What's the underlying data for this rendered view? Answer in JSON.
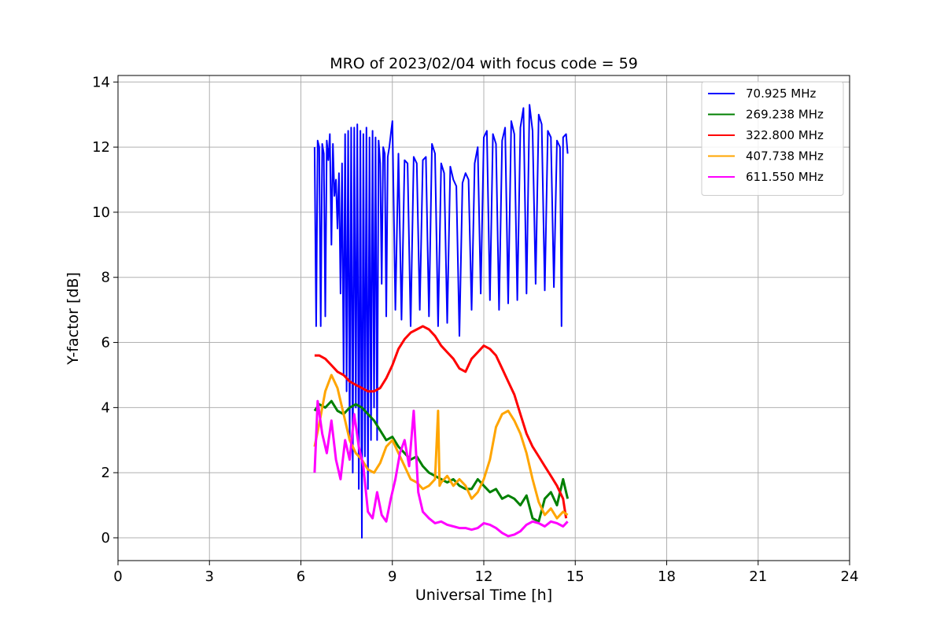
{
  "chart_data": {
    "type": "line",
    "title": "MRO of 2023/02/04 with focus code = 59",
    "xlabel": "Universal Time [h]",
    "ylabel": "Y-factor [dB]",
    "xlim": [
      0,
      24
    ],
    "ylim": [
      -0.7,
      14.2
    ],
    "xticks": [
      0,
      3,
      6,
      9,
      12,
      15,
      18,
      21,
      24
    ],
    "yticks": [
      0,
      2,
      4,
      6,
      8,
      10,
      12,
      14
    ],
    "grid": true,
    "legend_position": "top-right",
    "series": [
      {
        "name": " 70.925 MHz",
        "color": "#0000ff",
        "x": [
          6.45,
          6.5,
          6.55,
          6.6,
          6.65,
          6.7,
          6.75,
          6.8,
          6.85,
          6.9,
          6.95,
          7.0,
          7.05,
          7.1,
          7.15,
          7.2,
          7.25,
          7.3,
          7.35,
          7.4,
          7.45,
          7.5,
          7.55,
          7.6,
          7.65,
          7.7,
          7.75,
          7.8,
          7.85,
          7.9,
          7.95,
          8.0,
          8.05,
          8.1,
          8.15,
          8.2,
          8.25,
          8.3,
          8.35,
          8.4,
          8.45,
          8.5,
          8.55,
          8.6,
          8.65,
          8.7,
          8.75,
          8.8,
          8.85,
          8.9,
          8.95,
          9.0,
          9.1,
          9.2,
          9.3,
          9.4,
          9.5,
          9.6,
          9.7,
          9.8,
          9.9,
          10.0,
          10.1,
          10.2,
          10.3,
          10.4,
          10.5,
          10.6,
          10.7,
          10.8,
          10.9,
          11.0,
          11.1,
          11.2,
          11.3,
          11.4,
          11.5,
          11.6,
          11.7,
          11.8,
          11.9,
          12.0,
          12.1,
          12.2,
          12.3,
          12.4,
          12.5,
          12.6,
          12.7,
          12.8,
          12.9,
          13.0,
          13.1,
          13.2,
          13.3,
          13.4,
          13.5,
          13.6,
          13.7,
          13.8,
          13.9,
          14.0,
          14.1,
          14.2,
          14.3,
          14.4,
          14.5,
          14.55,
          14.6,
          14.7,
          14.75
        ],
        "y": [
          12.0,
          6.5,
          12.2,
          12.0,
          6.5,
          12.1,
          11.8,
          6.8,
          12.2,
          11.6,
          12.4,
          9.0,
          12.1,
          10.5,
          11.0,
          9.5,
          11.2,
          7.5,
          11.5,
          5.0,
          12.4,
          4.5,
          12.5,
          3.0,
          12.6,
          2.0,
          12.6,
          4.0,
          12.7,
          1.5,
          12.5,
          0.0,
          12.4,
          2.5,
          12.6,
          1.5,
          12.3,
          3.0,
          12.5,
          4.0,
          12.3,
          3.0,
          12.2,
          11.5,
          7.8,
          12.0,
          11.8,
          6.8,
          11.7,
          12.0,
          12.4,
          12.8,
          7.0,
          11.8,
          6.7,
          11.6,
          11.5,
          6.5,
          11.7,
          11.5,
          7.0,
          11.6,
          11.7,
          6.8,
          12.1,
          11.8,
          6.5,
          11.5,
          11.2,
          6.6,
          11.4,
          11.0,
          10.8,
          6.2,
          10.9,
          11.2,
          11.0,
          7.0,
          11.5,
          12.0,
          7.5,
          12.3,
          12.5,
          7.3,
          12.4,
          12.1,
          7.0,
          12.2,
          12.6,
          7.2,
          12.8,
          12.4,
          7.3,
          12.6,
          13.2,
          7.5,
          13.3,
          12.5,
          7.8,
          13.0,
          12.7,
          7.6,
          12.5,
          12.3,
          7.7,
          12.2,
          12.0,
          6.5,
          12.3,
          12.4,
          11.8
        ]
      },
      {
        "name": " 269.238 MHz",
        "color": "#008000",
        "x": [
          6.45,
          6.6,
          6.8,
          7.0,
          7.2,
          7.4,
          7.6,
          7.8,
          8.0,
          8.2,
          8.4,
          8.6,
          8.8,
          9.0,
          9.2,
          9.4,
          9.6,
          9.8,
          10.0,
          10.2,
          10.4,
          10.6,
          10.8,
          11.0,
          11.2,
          11.4,
          11.6,
          11.8,
          12.0,
          12.2,
          12.4,
          12.6,
          12.8,
          13.0,
          13.2,
          13.4,
          13.6,
          13.8,
          14.0,
          14.2,
          14.4,
          14.6,
          14.75
        ],
        "y": [
          3.9,
          4.1,
          4.0,
          4.2,
          3.9,
          3.8,
          4.0,
          4.1,
          4.0,
          3.8,
          3.6,
          3.3,
          3.0,
          3.1,
          2.8,
          2.6,
          2.4,
          2.5,
          2.2,
          2.0,
          1.9,
          1.8,
          1.7,
          1.8,
          1.6,
          1.5,
          1.5,
          1.8,
          1.6,
          1.4,
          1.5,
          1.2,
          1.3,
          1.2,
          1.0,
          1.3,
          0.6,
          0.5,
          1.2,
          1.4,
          1.0,
          1.8,
          1.2
        ]
      },
      {
        "name": " 322.800 MHz",
        "color": "#ff0000",
        "x": [
          6.45,
          6.6,
          6.8,
          7.0,
          7.2,
          7.4,
          7.6,
          7.8,
          8.0,
          8.2,
          8.4,
          8.6,
          8.8,
          9.0,
          9.2,
          9.4,
          9.6,
          9.8,
          10.0,
          10.2,
          10.4,
          10.6,
          10.8,
          11.0,
          11.2,
          11.4,
          11.6,
          11.8,
          12.0,
          12.2,
          12.4,
          12.6,
          12.8,
          13.0,
          13.2,
          13.4,
          13.6,
          13.8,
          14.0,
          14.2,
          14.4,
          14.6,
          14.7
        ],
        "y": [
          5.6,
          5.6,
          5.5,
          5.3,
          5.1,
          5.0,
          4.8,
          4.7,
          4.6,
          4.5,
          4.5,
          4.6,
          4.9,
          5.3,
          5.8,
          6.1,
          6.3,
          6.4,
          6.5,
          6.4,
          6.2,
          5.9,
          5.7,
          5.5,
          5.2,
          5.1,
          5.5,
          5.7,
          5.9,
          5.8,
          5.6,
          5.2,
          4.8,
          4.4,
          3.8,
          3.2,
          2.8,
          2.5,
          2.2,
          1.9,
          1.6,
          1.2,
          0.6
        ]
      },
      {
        "name": " 407.738 MHz",
        "color": "#ffa500",
        "x": [
          6.45,
          6.6,
          6.8,
          7.0,
          7.2,
          7.4,
          7.6,
          7.8,
          8.0,
          8.2,
          8.4,
          8.6,
          8.8,
          9.0,
          9.2,
          9.4,
          9.6,
          9.8,
          10.0,
          10.2,
          10.4,
          10.5,
          10.55,
          10.6,
          10.8,
          11.0,
          11.2,
          11.4,
          11.6,
          11.8,
          12.0,
          12.2,
          12.4,
          12.6,
          12.8,
          13.0,
          13.2,
          13.4,
          13.6,
          13.8,
          14.0,
          14.2,
          14.4,
          14.6,
          14.75
        ],
        "y": [
          2.8,
          3.5,
          4.5,
          5.0,
          4.6,
          3.8,
          3.0,
          2.6,
          2.4,
          2.1,
          2.0,
          2.3,
          2.8,
          3.0,
          2.6,
          2.2,
          1.8,
          1.7,
          1.5,
          1.6,
          1.8,
          3.9,
          1.6,
          1.7,
          1.9,
          1.6,
          1.8,
          1.6,
          1.2,
          1.4,
          1.8,
          2.4,
          3.4,
          3.8,
          3.9,
          3.6,
          3.2,
          2.6,
          1.8,
          1.1,
          0.7,
          0.9,
          0.6,
          0.8,
          0.7
        ]
      },
      {
        "name": " 611.550 MHz",
        "color": "#ff00ff",
        "x": [
          6.45,
          6.55,
          6.7,
          6.85,
          7.0,
          7.15,
          7.3,
          7.45,
          7.6,
          7.75,
          7.9,
          8.05,
          8.2,
          8.35,
          8.5,
          8.65,
          8.8,
          8.95,
          9.1,
          9.25,
          9.4,
          9.55,
          9.7,
          9.85,
          10.0,
          10.2,
          10.4,
          10.6,
          10.8,
          11.0,
          11.2,
          11.4,
          11.6,
          11.8,
          12.0,
          12.2,
          12.4,
          12.6,
          12.8,
          13.0,
          13.2,
          13.4,
          13.6,
          13.8,
          14.0,
          14.2,
          14.4,
          14.6,
          14.75
        ],
        "y": [
          2.0,
          4.2,
          3.2,
          2.6,
          3.6,
          2.4,
          1.8,
          3.0,
          2.4,
          3.8,
          2.8,
          2.2,
          0.8,
          0.6,
          1.4,
          0.7,
          0.5,
          1.2,
          1.8,
          2.6,
          3.0,
          2.2,
          3.9,
          1.4,
          0.8,
          0.6,
          0.45,
          0.5,
          0.4,
          0.35,
          0.3,
          0.3,
          0.25,
          0.3,
          0.45,
          0.4,
          0.3,
          0.15,
          0.05,
          0.1,
          0.2,
          0.4,
          0.5,
          0.45,
          0.35,
          0.5,
          0.45,
          0.35,
          0.5
        ]
      }
    ]
  }
}
